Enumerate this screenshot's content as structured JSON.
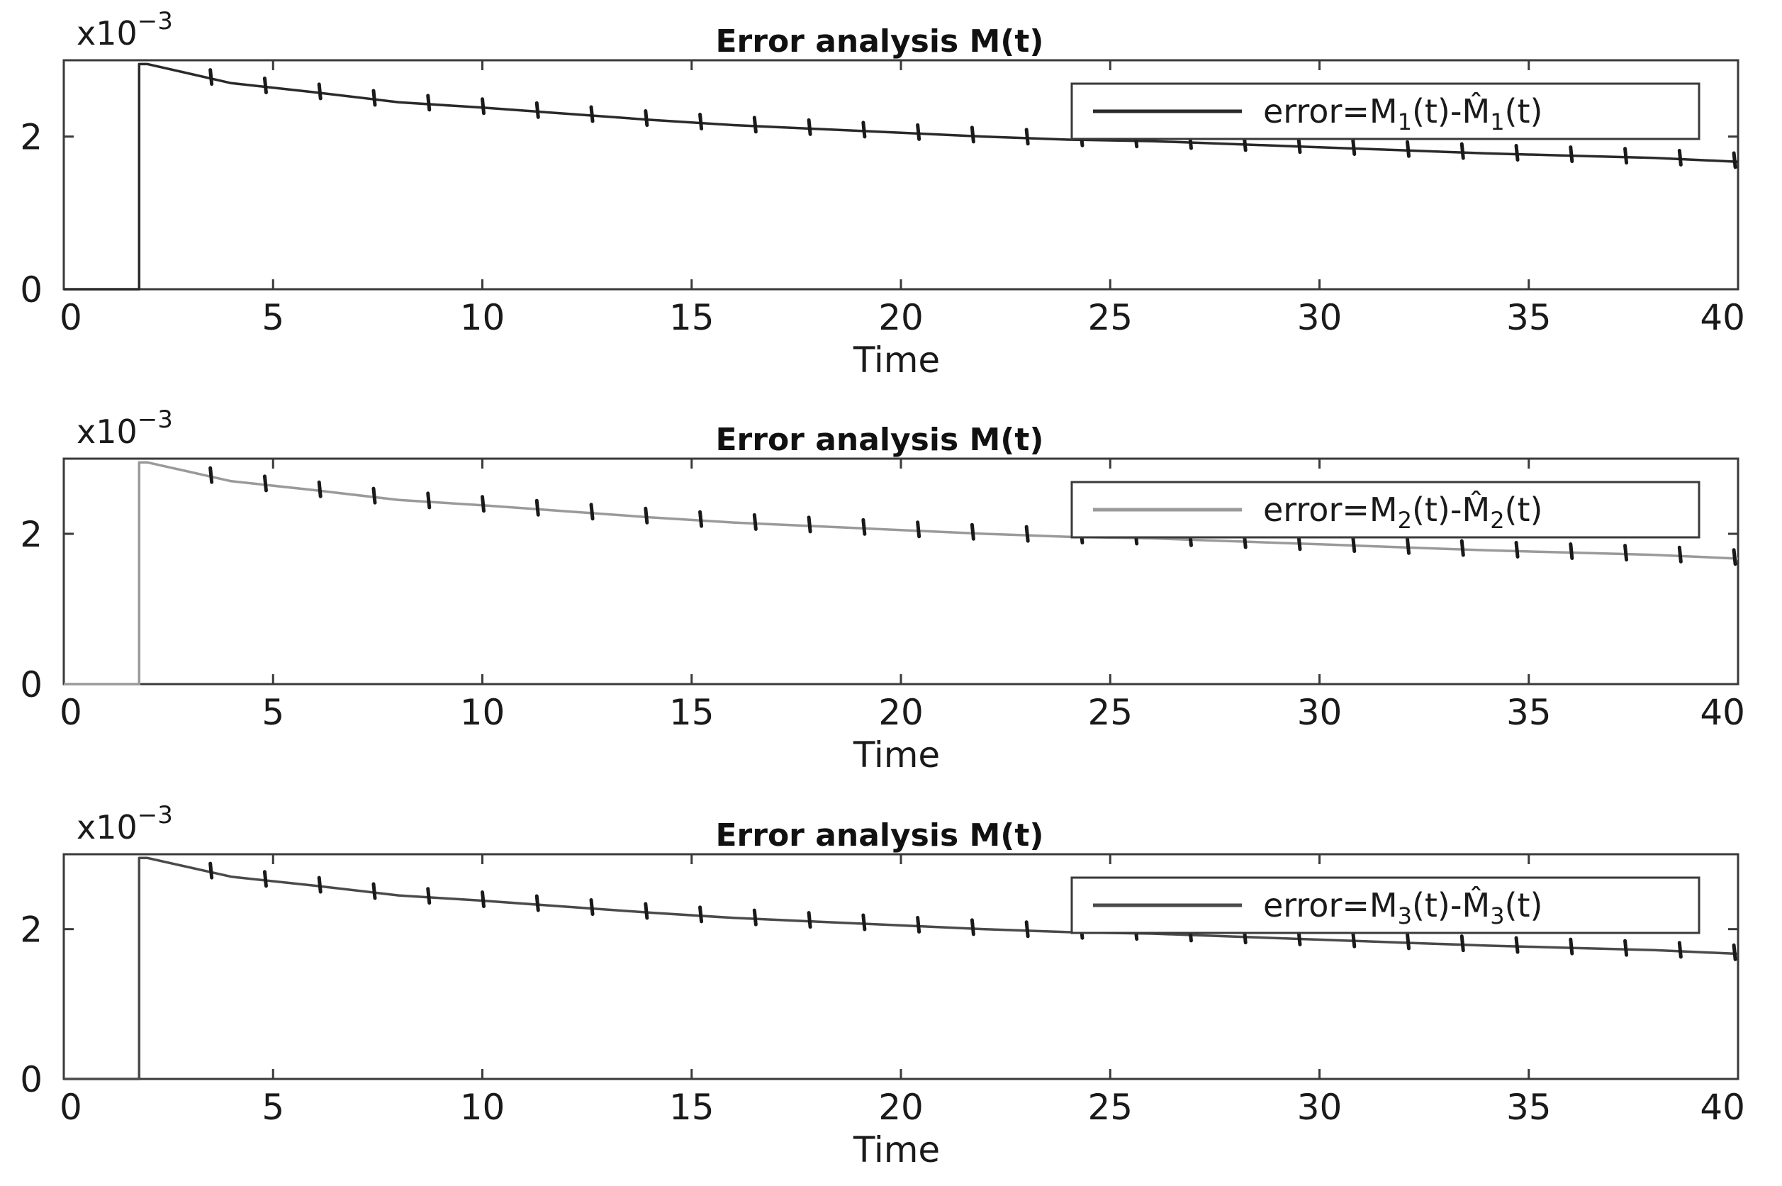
{
  "chart_data": [
    {
      "type": "line",
      "title": "Error analysis M(t)",
      "xlabel": "Time",
      "ylabel": "",
      "y_exponent": "x10",
      "y_exponent_power": "−3",
      "xlim": [
        0,
        40
      ],
      "ylim": [
        0,
        3
      ],
      "x_ticks": [
        "0",
        "5",
        "10",
        "15",
        "20",
        "25",
        "30",
        "35",
        "40"
      ],
      "y_ticks": [
        "0",
        "2"
      ],
      "legend": {
        "position": "top-right",
        "label": "error=M",
        "subscript": "1",
        "label_mid": "(t)-",
        "hat_symbol": "M̂",
        "subscript2": "1",
        "label_end": "(t)"
      },
      "series": [
        {
          "name": "error=M1(t)-M̂1(t)",
          "color": "#2a2a2a",
          "x": [
            0,
            1.8,
            1.8,
            2,
            4,
            6,
            8,
            10,
            12,
            14,
            16,
            18,
            20,
            22,
            24,
            26,
            28,
            30,
            32,
            34,
            36,
            38,
            40
          ],
          "y": [
            0,
            0,
            2.95,
            2.95,
            2.7,
            2.58,
            2.45,
            2.38,
            2.3,
            2.22,
            2.15,
            2.1,
            2.05,
            2.0,
            1.96,
            1.94,
            1.9,
            1.86,
            1.82,
            1.78,
            1.75,
            1.72,
            1.67
          ]
        }
      ]
    },
    {
      "type": "line",
      "title": "Error analysis M(t)",
      "xlabel": "Time",
      "ylabel": "",
      "y_exponent": "x10",
      "y_exponent_power": "−3",
      "xlim": [
        0,
        40
      ],
      "ylim": [
        0,
        3
      ],
      "x_ticks": [
        "0",
        "5",
        "10",
        "15",
        "20",
        "25",
        "30",
        "35",
        "40"
      ],
      "y_ticks": [
        "0",
        "2"
      ],
      "legend": {
        "position": "top-right",
        "label": "error=M",
        "subscript": "2",
        "label_mid": "(t)-",
        "hat_symbol": "M̂",
        "subscript2": "2",
        "label_end": "(t)"
      },
      "series": [
        {
          "name": "error=M2(t)-M̂2(t)",
          "color": "#9a9a9a",
          "x": [
            0,
            1.8,
            1.8,
            2,
            4,
            6,
            8,
            10,
            12,
            14,
            16,
            18,
            20,
            22,
            24,
            26,
            28,
            30,
            32,
            34,
            36,
            38,
            40
          ],
          "y": [
            0,
            0,
            2.95,
            2.95,
            2.7,
            2.58,
            2.45,
            2.38,
            2.3,
            2.22,
            2.15,
            2.1,
            2.05,
            2.0,
            1.96,
            1.94,
            1.9,
            1.86,
            1.82,
            1.78,
            1.75,
            1.72,
            1.67
          ]
        }
      ]
    },
    {
      "type": "line",
      "title": "Error analysis M(t)",
      "xlabel": "Time",
      "ylabel": "",
      "y_exponent": "x10",
      "y_exponent_power": "−3",
      "xlim": [
        0,
        40
      ],
      "ylim": [
        0,
        3
      ],
      "x_ticks": [
        "0",
        "5",
        "10",
        "15",
        "20",
        "25",
        "30",
        "35",
        "40"
      ],
      "y_ticks": [
        "0",
        "2"
      ],
      "legend": {
        "position": "top-right",
        "label": "error=M",
        "subscript": "3",
        "label_mid": "(t)-",
        "hat_symbol": "M̂",
        "subscript2": "3",
        "label_end": "(t)"
      },
      "series": [
        {
          "name": "error=M3(t)-M̂3(t)",
          "color": "#4a4a4a",
          "x": [
            0,
            1.8,
            1.8,
            2,
            4,
            6,
            8,
            10,
            12,
            14,
            16,
            18,
            20,
            22,
            24,
            26,
            28,
            30,
            32,
            34,
            36,
            38,
            40
          ],
          "y": [
            0,
            0,
            2.95,
            2.95,
            2.7,
            2.58,
            2.45,
            2.38,
            2.3,
            2.22,
            2.15,
            2.1,
            2.05,
            2.0,
            1.96,
            1.94,
            1.9,
            1.86,
            1.82,
            1.78,
            1.75,
            1.72,
            1.67
          ]
        }
      ]
    }
  ]
}
